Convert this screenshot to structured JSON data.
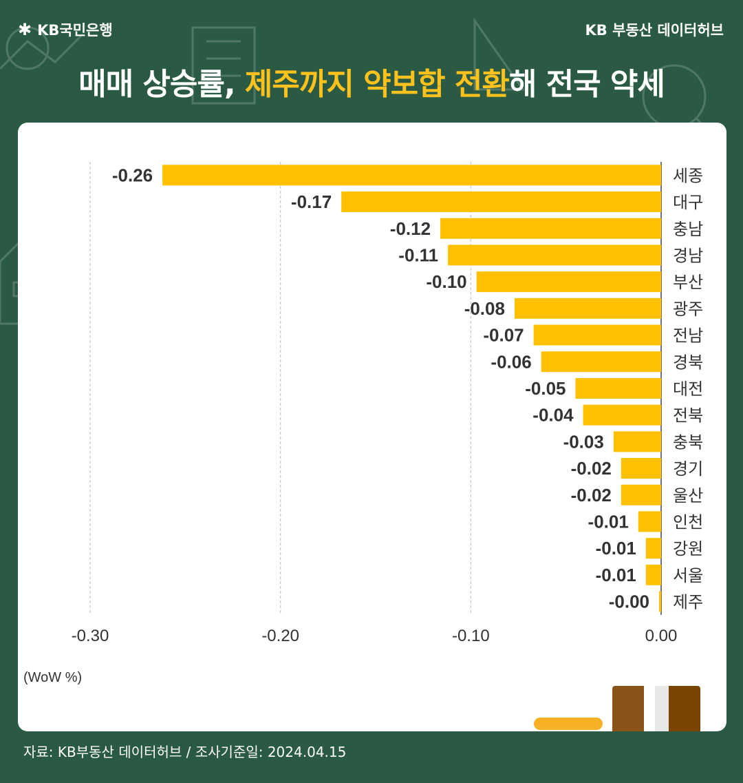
{
  "header": {
    "brand": "KB국민은행",
    "hub": "KB 부동산  데이터허브",
    "headline_part1": "매매 상승률, ",
    "headline_highlight": "제주까지 약보합 전환",
    "headline_part2": "해 전국 약세"
  },
  "colors": {
    "background": "#2a5a44",
    "bar": "#ffc000",
    "highlight": "#ffc21c"
  },
  "chart_data": {
    "type": "bar",
    "orientation": "horizontal",
    "categories": [
      "세종",
      "대구",
      "충남",
      "경남",
      "부산",
      "광주",
      "전남",
      "경북",
      "대전",
      "전북",
      "충북",
      "경기",
      "울산",
      "인천",
      "강원",
      "서울",
      "제주"
    ],
    "values": [
      -0.26,
      -0.17,
      -0.12,
      -0.11,
      -0.1,
      -0.08,
      -0.07,
      -0.06,
      -0.05,
      -0.04,
      -0.03,
      -0.02,
      -0.02,
      -0.01,
      -0.01,
      -0.01,
      -0.0
    ],
    "bar_values_exact": [
      -0.262,
      -0.168,
      -0.116,
      -0.112,
      -0.097,
      -0.077,
      -0.067,
      -0.063,
      -0.045,
      -0.041,
      -0.025,
      -0.021,
      -0.021,
      -0.012,
      -0.008,
      -0.008,
      -0.001
    ],
    "value_labels": [
      "-0.26",
      "-0.17",
      "-0.12",
      "-0.11",
      "-0.10",
      "-0.08",
      "-0.07",
      "-0.06",
      "-0.05",
      "-0.04",
      "-0.03",
      "-0.02",
      "-0.02",
      "-0.01",
      "-0.01",
      "-0.01",
      "-0.00"
    ],
    "xlim": [
      -0.3,
      0.0
    ],
    "xticks": [
      -0.3,
      -0.2,
      -0.1,
      0.0
    ],
    "xtick_labels": [
      "-0.30",
      "-0.20",
      "-0.10",
      "0.00"
    ],
    "unit_label": "(WoW %)",
    "grid": "vertical dashed",
    "legend": "none"
  },
  "footer": {
    "source": "자료: KB부동산 데이터허브 / 조사기준일: 2024.04.15"
  }
}
